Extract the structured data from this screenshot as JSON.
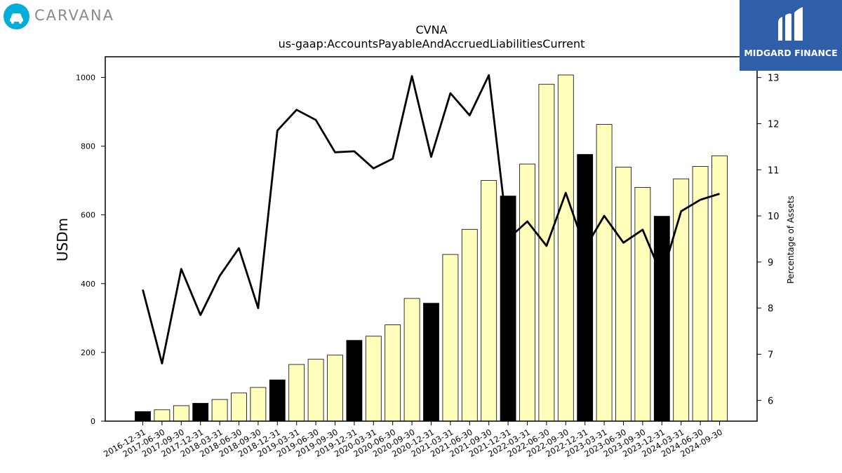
{
  "header": {
    "brand_name": "CARVANA",
    "partner_name": "MIDGARD FINANCE",
    "brand_color": "#00aed9",
    "partner_color": "#2f5fa8",
    "brand_icon": "car-icon",
    "partner_icon": "midgard-m-logo-icon"
  },
  "chart_data": {
    "type": "bar",
    "title": "CVNA",
    "subtitle": "us-gaap:AccountsPayableAndAccruedLiabilitiesCurrent",
    "ylabel": "USDm",
    "y2label": "Percentage of Assets",
    "ylim": [
      0,
      1060
    ],
    "y2lim": [
      5.55,
      13.45
    ],
    "yticks": [
      0,
      200,
      400,
      600,
      800,
      1000
    ],
    "y2ticks": [
      6,
      7,
      8,
      9,
      10,
      11,
      12,
      13
    ],
    "grid": false,
    "categories": [
      "2016-12-31",
      "2017-06-30",
      "2017-09-30",
      "2017-12-31",
      "2018-03-31",
      "2018-06-30",
      "2018-09-30",
      "2018-12-31",
      "2019-03-31",
      "2019-06-30",
      "2019-09-30",
      "2019-12-31",
      "2020-03-31",
      "2020-06-30",
      "2020-09-30",
      "2020-12-31",
      "2021-03-31",
      "2021-06-30",
      "2021-09-30",
      "2021-12-31",
      "2022-03-31",
      "2022-06-30",
      "2022-09-30",
      "2022-12-31",
      "2023-03-31",
      "2023-06-30",
      "2023-09-30",
      "2023-12-31",
      "2024-03-31",
      "2024-06-30",
      "2024-09-30"
    ],
    "series": [
      {
        "type": "bar",
        "values": [
          28,
          33,
          45,
          52,
          63,
          82,
          98,
          120,
          165,
          180,
          192,
          235,
          247,
          280,
          357,
          343,
          485,
          558,
          700,
          655,
          748,
          980,
          1007,
          776,
          863,
          739,
          680,
          596,
          705,
          741,
          772
        ],
        "year_end_color": "#000000",
        "quarter_color": "#ffffbb"
      },
      {
        "type": "line",
        "axis": "right",
        "color": "#000000",
        "values": [
          8.4,
          6.8,
          8.85,
          7.85,
          8.7,
          9.3,
          8.0,
          11.85,
          12.3,
          12.08,
          11.38,
          11.4,
          11.03,
          11.24,
          13.03,
          11.28,
          12.66,
          12.18,
          13.05,
          9.5,
          9.88,
          9.35,
          10.5,
          9.3,
          10.0,
          9.42,
          9.7,
          8.7,
          10.1,
          10.35,
          10.48
        ]
      }
    ]
  }
}
